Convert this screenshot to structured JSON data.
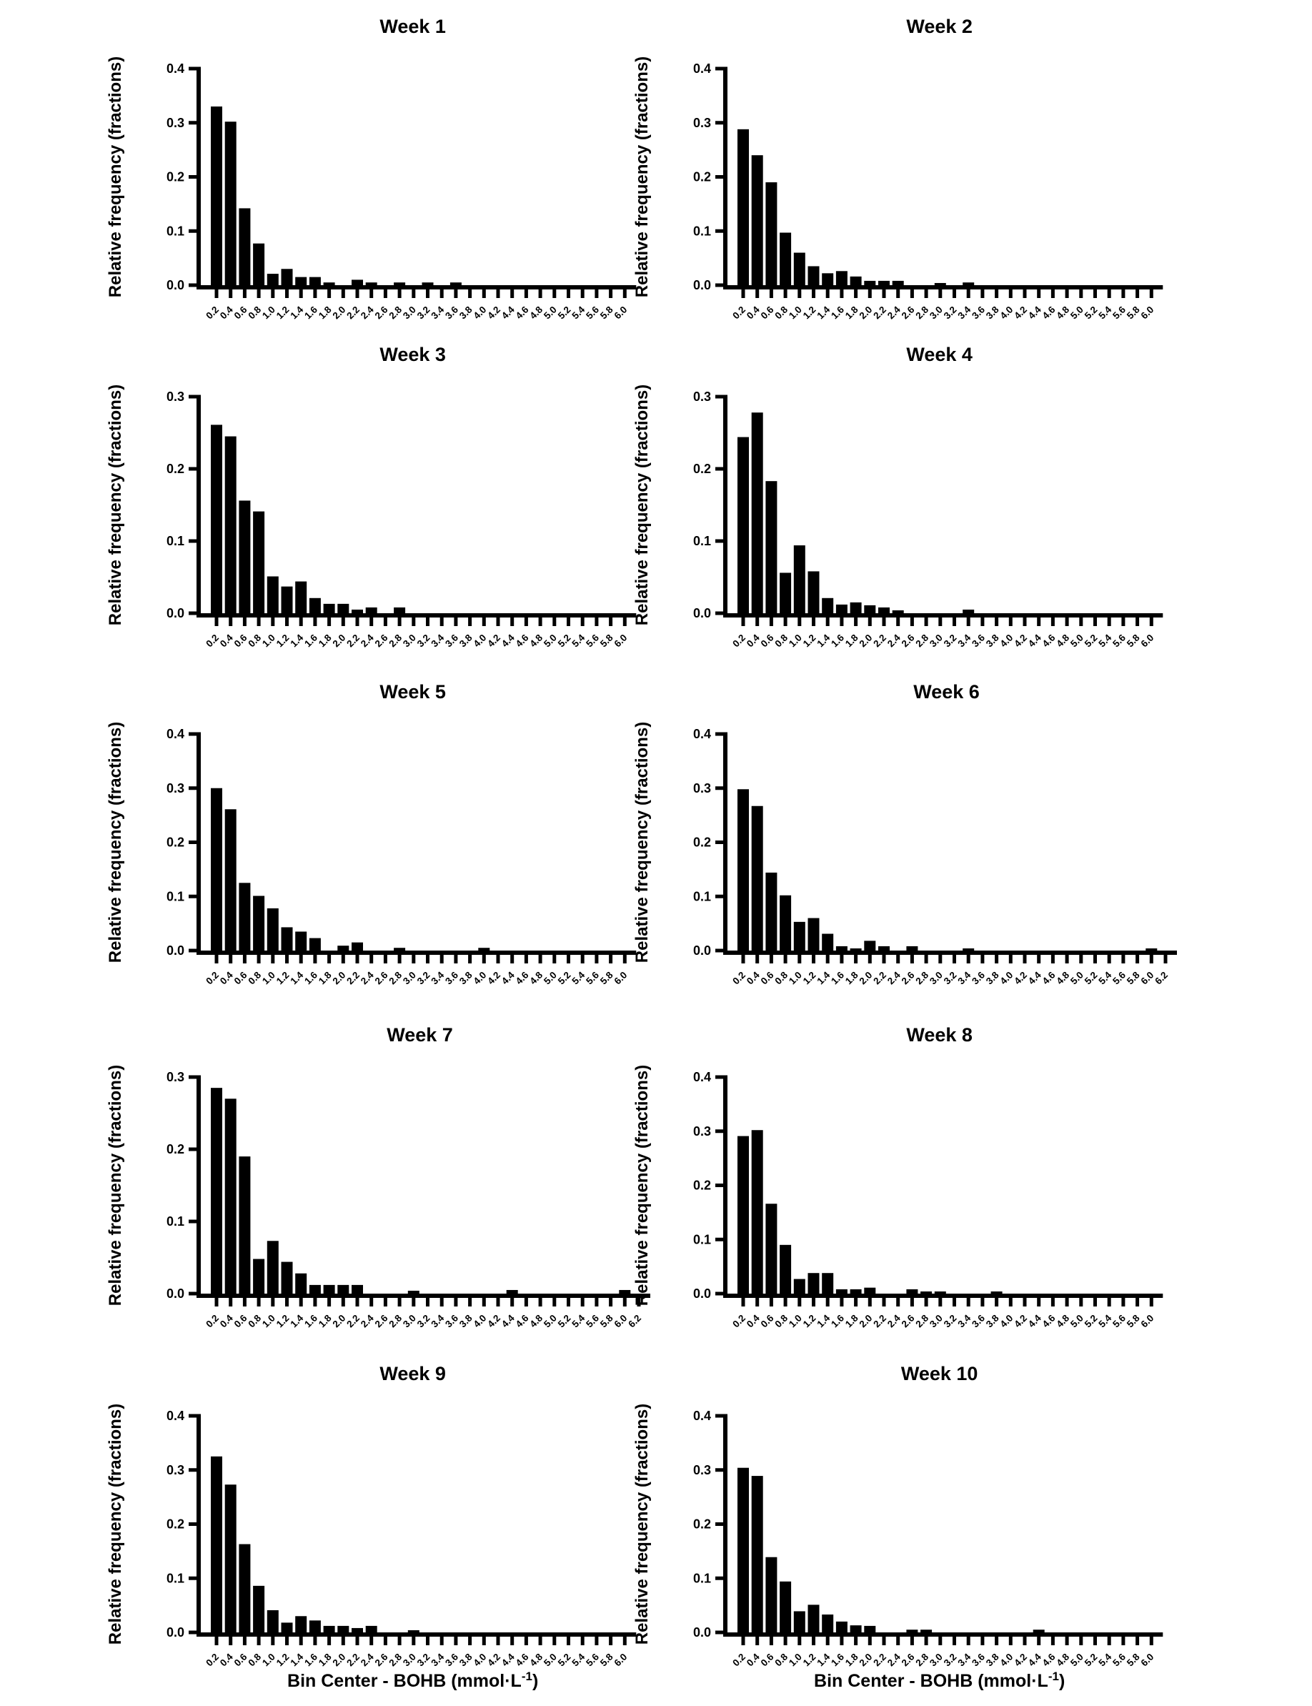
{
  "figure": {
    "ylabel": "Relative frequency (fractions)",
    "xlabel_prefix": "Bin Center - BOHB (mmol·L",
    "xlabel_superscript": "-1",
    "xlabel_suffix": ")",
    "colors": {
      "bar": "#000000",
      "axis": "#000000",
      "text": "#000000",
      "background": "#ffffff"
    }
  },
  "chart_data": [
    {
      "type": "bar",
      "title": "Week 1",
      "ylim": [
        0,
        0.4
      ],
      "yticks": [
        "0.0",
        "0.1",
        "0.2",
        "0.3",
        "0.4"
      ],
      "categories": [
        "0.2",
        "0.4",
        "0.6",
        "0.8",
        "1.0",
        "1.2",
        "1.4",
        "1.6",
        "1.8",
        "2.0",
        "2.2",
        "2.4",
        "2.6",
        "2.8",
        "3.0",
        "3.2",
        "3.4",
        "3.6",
        "3.8",
        "4.0",
        "4.2",
        "4.4",
        "4.6",
        "4.8",
        "5.0",
        "5.2",
        "5.4",
        "5.6",
        "5.8",
        "6.0"
      ],
      "values": [
        0.33,
        0.302,
        0.142,
        0.077,
        0.021,
        0.03,
        0.015,
        0.015,
        0.005,
        0,
        0.01,
        0.005,
        0,
        0.005,
        0,
        0.005,
        0,
        0.005,
        0,
        0,
        0,
        0,
        0,
        0,
        0,
        0,
        0,
        0,
        0,
        0
      ]
    },
    {
      "type": "bar",
      "title": "Week 2",
      "ylim": [
        0,
        0.4
      ],
      "yticks": [
        "0.0",
        "0.1",
        "0.2",
        "0.3",
        "0.4"
      ],
      "categories": [
        "0.2",
        "0.4",
        "0.6",
        "0.8",
        "1.0",
        "1.2",
        "1.4",
        "1.6",
        "1.8",
        "2.0",
        "2.2",
        "2.4",
        "2.6",
        "2.8",
        "3.0",
        "3.2",
        "3.4",
        "3.6",
        "3.8",
        "4.0",
        "4.2",
        "4.4",
        "4.6",
        "4.8",
        "5.0",
        "5.2",
        "5.4",
        "5.6",
        "5.8",
        "6.0"
      ],
      "values": [
        0.288,
        0.24,
        0.19,
        0.097,
        0.06,
        0.035,
        0.022,
        0.026,
        0.016,
        0.008,
        0.008,
        0.008,
        0,
        0,
        0.004,
        0,
        0.005,
        0,
        0,
        0,
        0,
        0,
        0,
        0,
        0,
        0,
        0,
        0,
        0,
        0
      ]
    },
    {
      "type": "bar",
      "title": "Week 3",
      "ylim": [
        0,
        0.3
      ],
      "yticks": [
        "0.0",
        "0.1",
        "0.2",
        "0.3"
      ],
      "categories": [
        "0.2",
        "0.4",
        "0.6",
        "0.8",
        "1.0",
        "1.2",
        "1.4",
        "1.6",
        "1.8",
        "2.0",
        "2.2",
        "2.4",
        "2.6",
        "2.8",
        "3.0",
        "3.2",
        "3.4",
        "3.6",
        "3.8",
        "4.0",
        "4.2",
        "4.4",
        "4.6",
        "4.8",
        "5.0",
        "5.2",
        "5.4",
        "5.6",
        "5.8",
        "6.0"
      ],
      "values": [
        0.261,
        0.245,
        0.156,
        0.141,
        0.051,
        0.037,
        0.044,
        0.021,
        0.013,
        0.013,
        0.005,
        0.008,
        0,
        0.008,
        0,
        0,
        0,
        0,
        0,
        0,
        0,
        0,
        0,
        0,
        0,
        0,
        0,
        0,
        0,
        0
      ]
    },
    {
      "type": "bar",
      "title": "Week 4",
      "ylim": [
        0,
        0.3
      ],
      "yticks": [
        "0.0",
        "0.1",
        "0.2",
        "0.3"
      ],
      "categories": [
        "0.2",
        "0.4",
        "0.6",
        "0.8",
        "1.0",
        "1.2",
        "1.4",
        "1.6",
        "1.8",
        "2.0",
        "2.2",
        "2.4",
        "2.6",
        "2.8",
        "3.0",
        "3.2",
        "3.4",
        "3.6",
        "3.8",
        "4.0",
        "4.2",
        "4.4",
        "4.6",
        "4.8",
        "5.0",
        "5.2",
        "5.4",
        "5.6",
        "5.8",
        "6.0"
      ],
      "values": [
        0.244,
        0.278,
        0.183,
        0.056,
        0.094,
        0.058,
        0.021,
        0.012,
        0.015,
        0.011,
        0.008,
        0.004,
        0,
        0,
        0,
        0,
        0.005,
        0,
        0,
        0,
        0,
        0,
        0,
        0,
        0,
        0,
        0,
        0,
        0,
        0
      ]
    },
    {
      "type": "bar",
      "title": "Week 5",
      "ylim": [
        0,
        0.4
      ],
      "yticks": [
        "0.0",
        "0.1",
        "0.2",
        "0.3",
        "0.4"
      ],
      "categories": [
        "0.2",
        "0.4",
        "0.6",
        "0.8",
        "1.0",
        "1.2",
        "1.4",
        "1.6",
        "1.8",
        "2.0",
        "2.2",
        "2.4",
        "2.6",
        "2.8",
        "3.0",
        "3.2",
        "3.4",
        "3.6",
        "3.8",
        "4.0",
        "4.2",
        "4.4",
        "4.6",
        "4.8",
        "5.0",
        "5.2",
        "5.4",
        "5.6",
        "5.8",
        "6.0"
      ],
      "values": [
        0.3,
        0.261,
        0.125,
        0.101,
        0.078,
        0.043,
        0.035,
        0.023,
        0,
        0.009,
        0.015,
        0,
        0,
        0.005,
        0,
        0,
        0,
        0,
        0,
        0.005,
        0,
        0,
        0,
        0,
        0,
        0,
        0,
        0,
        0,
        0
      ]
    },
    {
      "type": "bar",
      "title": "Week 6",
      "ylim": [
        0,
        0.4
      ],
      "yticks": [
        "0.0",
        "0.1",
        "0.2",
        "0.3",
        "0.4"
      ],
      "categories": [
        "0.2",
        "0.4",
        "0.6",
        "0.8",
        "1.0",
        "1.2",
        "1.4",
        "1.6",
        "1.8",
        "2.0",
        "2.2",
        "2.4",
        "2.6",
        "2.8",
        "3.0",
        "3.2",
        "3.4",
        "3.6",
        "3.8",
        "4.0",
        "4.2",
        "4.4",
        "4.6",
        "4.8",
        "5.0",
        "5.2",
        "5.4",
        "5.6",
        "5.8",
        "6.0",
        "6.2"
      ],
      "values": [
        0.298,
        0.267,
        0.144,
        0.102,
        0.053,
        0.06,
        0.031,
        0.008,
        0.004,
        0.018,
        0.008,
        0,
        0.008,
        0,
        0,
        0,
        0.004,
        0,
        0,
        0,
        0,
        0,
        0,
        0,
        0,
        0,
        0,
        0,
        0,
        0.004,
        0
      ]
    },
    {
      "type": "bar",
      "title": "Week 7",
      "ylim": [
        0,
        0.3
      ],
      "yticks": [
        "0.0",
        "0.1",
        "0.2",
        "0.3"
      ],
      "categories": [
        "0.2",
        "0.4",
        "0.6",
        "0.8",
        "1.0",
        "1.2",
        "1.4",
        "1.6",
        "1.8",
        "2.0",
        "2.2",
        "2.4",
        "2.6",
        "2.8",
        "3.0",
        "3.2",
        "3.4",
        "3.6",
        "3.8",
        "4.0",
        "4.2",
        "4.4",
        "4.6",
        "4.8",
        "5.0",
        "5.2",
        "5.4",
        "5.6",
        "5.8",
        "6.0",
        "6.2"
      ],
      "values": [
        0.285,
        0.27,
        0.19,
        0.048,
        0.073,
        0.044,
        0.028,
        0.012,
        0.012,
        0.012,
        0.012,
        0,
        0,
        0,
        0.004,
        0,
        0,
        0,
        0,
        0,
        0,
        0.005,
        0,
        0,
        0,
        0,
        0,
        0,
        0,
        0.005,
        0
      ]
    },
    {
      "type": "bar",
      "title": "Week 8",
      "ylim": [
        0,
        0.4
      ],
      "yticks": [
        "0.0",
        "0.1",
        "0.2",
        "0.3",
        "0.4"
      ],
      "categories": [
        "0.2",
        "0.4",
        "0.6",
        "0.8",
        "1.0",
        "1.2",
        "1.4",
        "1.6",
        "1.8",
        "2.0",
        "2.2",
        "2.4",
        "2.6",
        "2.8",
        "3.0",
        "3.2",
        "3.4",
        "3.6",
        "3.8",
        "4.0",
        "4.2",
        "4.4",
        "4.6",
        "4.8",
        "5.0",
        "5.2",
        "5.4",
        "5.6",
        "5.8",
        "6.0"
      ],
      "values": [
        0.291,
        0.302,
        0.166,
        0.09,
        0.027,
        0.038,
        0.038,
        0.008,
        0.008,
        0.011,
        0,
        0,
        0.008,
        0.004,
        0.004,
        0,
        0,
        0,
        0.004,
        0,
        0,
        0,
        0,
        0,
        0,
        0,
        0,
        0,
        0,
        0
      ]
    },
    {
      "type": "bar",
      "title": "Week 9",
      "ylim": [
        0,
        0.4
      ],
      "yticks": [
        "0.0",
        "0.1",
        "0.2",
        "0.3",
        "0.4"
      ],
      "categories": [
        "0.2",
        "0.4",
        "0.6",
        "0.8",
        "1.0",
        "1.2",
        "1.4",
        "1.6",
        "1.8",
        "2.0",
        "2.2",
        "2.4",
        "2.6",
        "2.8",
        "3.0",
        "3.2",
        "3.4",
        "3.6",
        "3.8",
        "4.0",
        "4.2",
        "4.4",
        "4.6",
        "4.8",
        "5.0",
        "5.2",
        "5.4",
        "5.6",
        "5.8",
        "6.0"
      ],
      "values": [
        0.325,
        0.273,
        0.163,
        0.086,
        0.041,
        0.018,
        0.03,
        0.022,
        0.012,
        0.012,
        0.008,
        0.012,
        0,
        0,
        0.004,
        0,
        0,
        0,
        0,
        0,
        0,
        0,
        0,
        0,
        0,
        0,
        0,
        0,
        0,
        0
      ]
    },
    {
      "type": "bar",
      "title": "Week 10",
      "ylim": [
        0,
        0.4
      ],
      "yticks": [
        "0.0",
        "0.1",
        "0.2",
        "0.3",
        "0.4"
      ],
      "categories": [
        "0.2",
        "0.4",
        "0.6",
        "0.8",
        "1.0",
        "1.2",
        "1.4",
        "1.6",
        "1.8",
        "2.0",
        "2.2",
        "2.4",
        "2.6",
        "2.8",
        "3.0",
        "3.2",
        "3.4",
        "3.6",
        "3.8",
        "4.0",
        "4.2",
        "4.4",
        "4.6",
        "4.8",
        "5.0",
        "5.2",
        "5.4",
        "5.6",
        "5.8",
        "6.0"
      ],
      "values": [
        0.304,
        0.289,
        0.139,
        0.094,
        0.039,
        0.051,
        0.033,
        0.02,
        0.013,
        0.012,
        0,
        0,
        0.005,
        0.005,
        0,
        0,
        0,
        0,
        0,
        0,
        0,
        0.005,
        0,
        0,
        0,
        0,
        0,
        0,
        0,
        0
      ]
    }
  ]
}
